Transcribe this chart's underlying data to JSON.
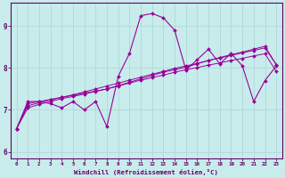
{
  "xlabel": "Windchill (Refroidissement éolien,°C)",
  "bg_color": "#c8ecec",
  "line_color": "#990099",
  "grid_color": "#aad4d4",
  "axis_color": "#660066",
  "text_color": "#660066",
  "xlim": [
    -0.5,
    23.5
  ],
  "ylim": [
    5.85,
    9.55
  ],
  "yticks": [
    6,
    7,
    8,
    9
  ],
  "xticks": [
    0,
    1,
    2,
    3,
    4,
    5,
    6,
    7,
    8,
    9,
    10,
    11,
    12,
    13,
    14,
    15,
    16,
    17,
    18,
    19,
    20,
    21,
    22,
    23
  ],
  "jagged": [
    6.55,
    7.2,
    7.2,
    7.15,
    7.05,
    7.2,
    7.0,
    7.2,
    6.6,
    7.8,
    8.35,
    9.25,
    9.3,
    9.2,
    8.9,
    7.95,
    8.2,
    8.45,
    8.1,
    8.35,
    8.05,
    7.2,
    7.7,
    8.05
  ],
  "trend1": [
    6.55,
    7.15,
    7.2,
    7.25,
    7.3,
    7.35,
    7.4,
    7.45,
    7.5,
    7.58,
    7.66,
    7.74,
    7.82,
    7.9,
    7.96,
    8.02,
    8.1,
    8.18,
    8.25,
    8.32,
    8.38,
    8.45,
    8.52,
    8.08
  ],
  "trend2": [
    6.55,
    7.1,
    7.17,
    7.24,
    7.3,
    7.36,
    7.43,
    7.5,
    7.57,
    7.64,
    7.71,
    7.78,
    7.85,
    7.92,
    7.99,
    8.05,
    8.11,
    8.18,
    8.24,
    8.3,
    8.36,
    8.42,
    8.48,
    8.08
  ],
  "trend3": [
    6.55,
    7.05,
    7.13,
    7.2,
    7.27,
    7.32,
    7.38,
    7.44,
    7.5,
    7.57,
    7.64,
    7.71,
    7.77,
    7.83,
    7.9,
    7.96,
    8.01,
    8.07,
    8.12,
    8.18,
    8.23,
    8.29,
    8.34,
    7.92
  ]
}
